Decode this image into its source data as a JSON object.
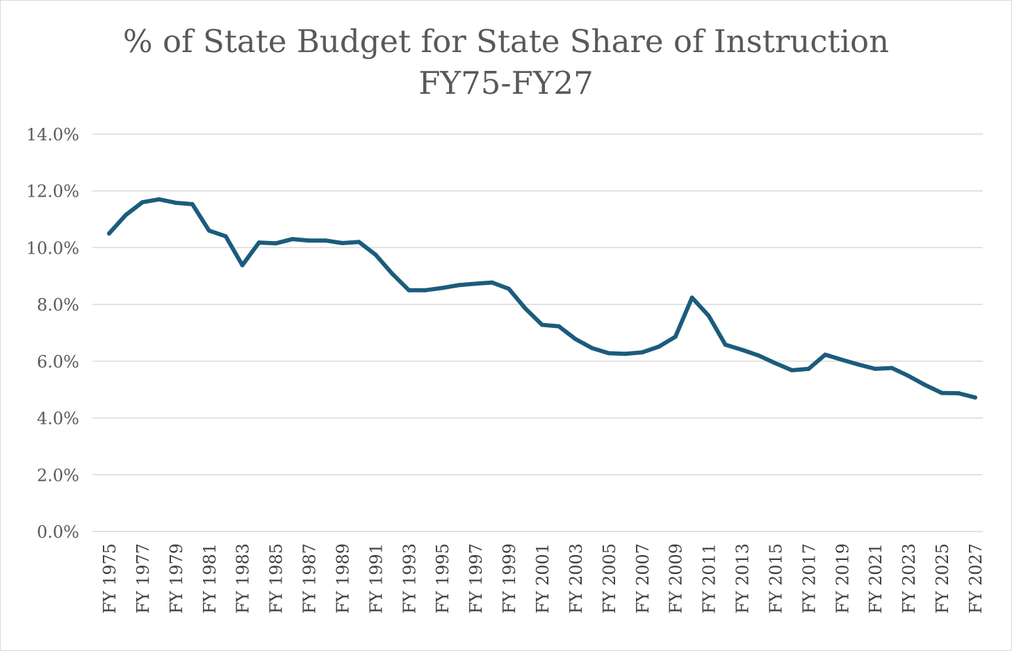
{
  "chart_data": {
    "type": "line",
    "title": "% of State Budget for State Share of Instruction",
    "subtitle": "FY75-FY27",
    "xlabel": "",
    "ylabel": "",
    "ylim": [
      0,
      14
    ],
    "y_ticks": [
      "0.0%",
      "2.0%",
      "4.0%",
      "6.0%",
      "8.0%",
      "10.0%",
      "12.0%",
      "14.0%"
    ],
    "y_tick_values": [
      0,
      2,
      4,
      6,
      8,
      10,
      12,
      14
    ],
    "grid": true,
    "legend": "none",
    "categories": [
      "FY 1975",
      "FY 1976",
      "FY 1977",
      "FY 1978",
      "FY 1979",
      "FY 1980",
      "FY 1981",
      "FY 1982",
      "FY 1983",
      "FY 1984",
      "FY 1985",
      "FY 1986",
      "FY 1987",
      "FY 1988",
      "FY 1989",
      "FY 1990",
      "FY 1991",
      "FY 1992",
      "FY 1993",
      "FY 1994",
      "FY 1995",
      "FY 1996",
      "FY 1997",
      "FY 1998",
      "FY 1999",
      "FY 2000",
      "FY 2001",
      "FY 2002",
      "FY 2003",
      "FY 2004",
      "FY 2005",
      "FY 2006",
      "FY 2007",
      "FY 2008",
      "FY 2009",
      "FY 2010",
      "FY 2011",
      "FY 2012",
      "FY 2013",
      "FY 2014",
      "FY 2015",
      "FY 2016",
      "FY 2017",
      "FY 2018",
      "FY 2019",
      "FY 2020",
      "FY 2021",
      "FY 2022",
      "FY 2023",
      "FY 2024",
      "FY 2025",
      "FY 2026",
      "FY 2027"
    ],
    "visible_x_labels": [
      "FY 1975",
      "FY 1977",
      "FY 1979",
      "FY 1981",
      "FY 1983",
      "FY 1985",
      "FY 1987",
      "FY 1989",
      "FY 1991",
      "FY 1993",
      "FY 1995",
      "FY 1997",
      "FY 1999",
      "FY 2001",
      "FY 2003",
      "FY 2005",
      "FY 2007",
      "FY 2009",
      "FY 2011",
      "FY 2013",
      "FY 2015",
      "FY 2017",
      "FY 2019",
      "FY 2021",
      "FY 2023",
      "FY 2025",
      "FY 2027"
    ],
    "series": [
      {
        "name": "% of State Budget for State Share of Instruction",
        "color": "#1b5c7c",
        "values": [
          10.5,
          11.15,
          11.6,
          11.7,
          11.58,
          11.53,
          10.6,
          10.4,
          9.38,
          10.18,
          10.15,
          10.3,
          10.25,
          10.25,
          10.16,
          10.2,
          9.75,
          9.08,
          8.5,
          8.5,
          8.58,
          8.68,
          8.73,
          8.77,
          8.55,
          7.85,
          7.28,
          7.23,
          6.78,
          6.46,
          6.28,
          6.26,
          6.31,
          6.51,
          6.86,
          8.24,
          7.6,
          6.58,
          6.4,
          6.2,
          5.93,
          5.68,
          5.73,
          6.23,
          6.05,
          5.88,
          5.73,
          5.76,
          5.48,
          5.16,
          4.88,
          4.87,
          4.72
        ]
      }
    ]
  }
}
